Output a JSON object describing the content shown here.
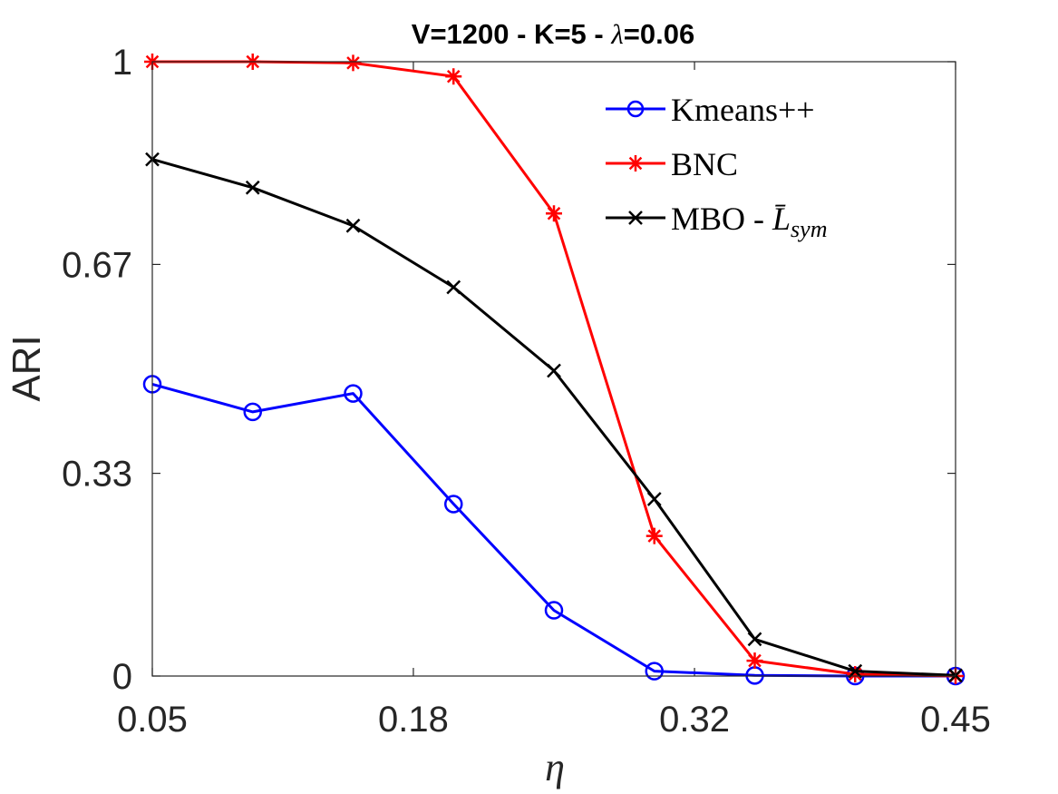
{
  "chart_data": {
    "type": "line",
    "title": "V=1200 - K=5 - λ=0.06",
    "title_prefix": "V=1200 - K=5 - ",
    "title_symbol": "λ",
    "title_suffix": "=0.06",
    "xlabel": "η",
    "ylabel": "ARI",
    "xlim": [
      0.05,
      0.45
    ],
    "ylim": [
      0,
      1
    ],
    "xticks": [
      0.05,
      0.18,
      0.32,
      0.45
    ],
    "xtick_labels": [
      "0.05",
      "0.18",
      "0.32",
      "0.45"
    ],
    "yticks": [
      0,
      0.33,
      0.67,
      1
    ],
    "ytick_labels": [
      "0",
      "0.33",
      "0.67",
      "1"
    ],
    "grid": false,
    "legend_position": "top-right",
    "x": [
      0.05,
      0.1,
      0.15,
      0.2,
      0.25,
      0.3,
      0.35,
      0.4,
      0.45
    ],
    "series": [
      {
        "name": "Kmeans++",
        "color": "#0000ff",
        "marker": "circle",
        "values": [
          0.475,
          0.43,
          0.46,
          0.28,
          0.107,
          0.008,
          0.001,
          0.0,
          0.0
        ]
      },
      {
        "name": "BNC",
        "color": "#ff0000",
        "marker": "asterisk",
        "values": [
          1.0,
          1.0,
          0.998,
          0.976,
          0.753,
          0.228,
          0.025,
          0.003,
          0.0
        ]
      },
      {
        "name": "MBO - L̄sym",
        "legend_main": "MBO - ",
        "legend_symbol": "L̄",
        "legend_sub": "sym",
        "color": "#000000",
        "marker": "x",
        "values": [
          0.841,
          0.795,
          0.733,
          0.633,
          0.497,
          0.288,
          0.06,
          0.008,
          0.001
        ]
      }
    ]
  }
}
